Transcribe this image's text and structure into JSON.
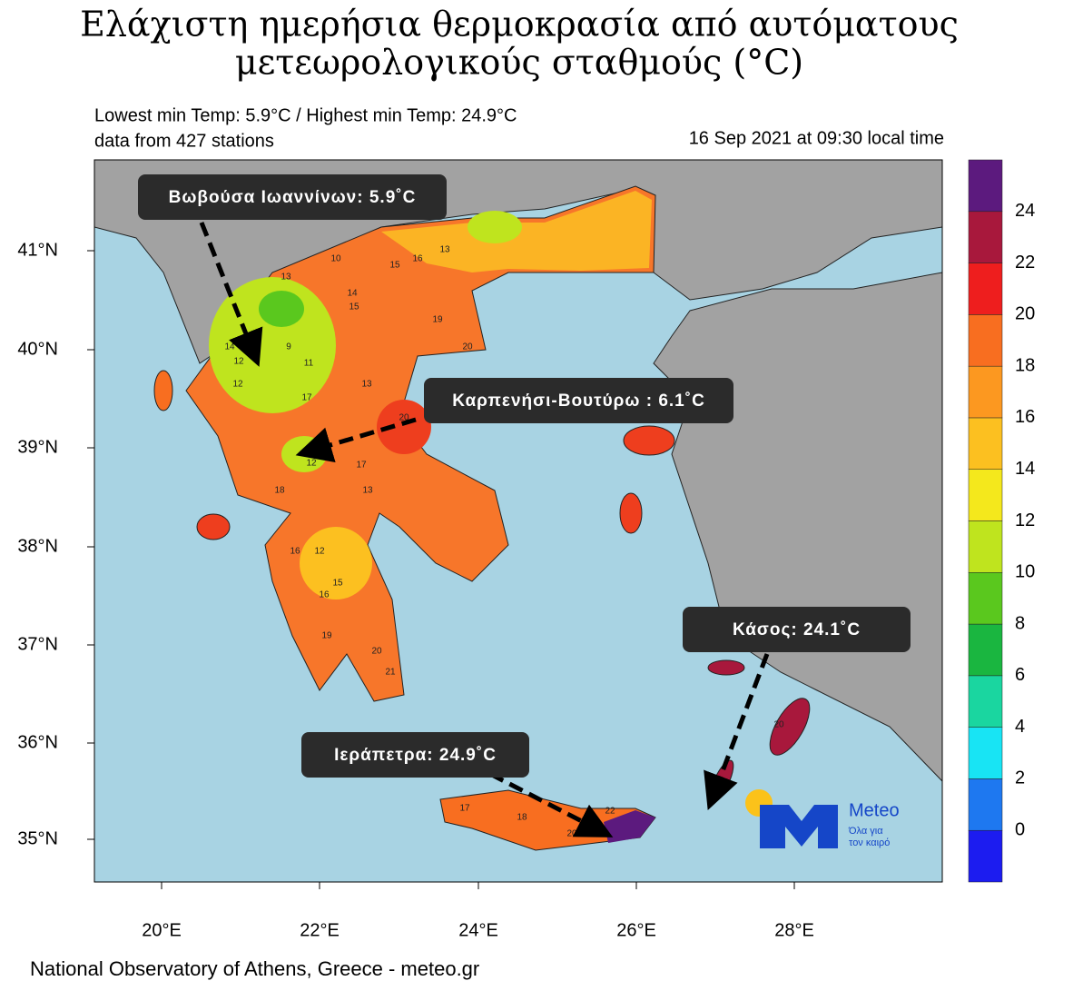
{
  "title": [
    "Ελάχιστη ημερήσια θερμοκρασία από αυτόματους",
    "μετεωρολογικούς σταθμούς (°C)"
  ],
  "subtitle": [
    "Lowest min Temp: 5.9°C / Highest min Temp: 24.9°C",
    "data from 427 stations"
  ],
  "date": "16 Sep 2021 at 09:30 local time",
  "lat_labels": [
    "41°N",
    "40°N",
    "39°N",
    "38°N",
    "37°N",
    "36°N",
    "35°N"
  ],
  "lon_labels": [
    "20°E",
    "22°E",
    "24°E",
    "26°E",
    "28°E"
  ],
  "colorbar": {
    "colors": [
      "#1c1cf0",
      "#1e78f0",
      "#18e4f4",
      "#1ad6a0",
      "#1ab640",
      "#5ac81e",
      "#bfe41e",
      "#f4e81c",
      "#fcc020",
      "#fc9820",
      "#f86e20",
      "#ee1e1e",
      "#a8183c",
      "#5c1a7e"
    ],
    "ticks": [
      0,
      2,
      4,
      6,
      8,
      10,
      12,
      14,
      16,
      18,
      20,
      22,
      24
    ]
  },
  "annotations": [
    "Βωβούσα Ιωαννίνων: 5.9˚C",
    "Καρπενήσι-Βουτύρω : 6.1˚C",
    "Κάσος: 24.1˚C",
    "Ιεράπετρα: 24.9˚C"
  ],
  "stations": [
    "13",
    "10",
    "15",
    "14",
    "13",
    "16",
    "15",
    "19",
    "20",
    "12",
    "9",
    "14",
    "11",
    "17",
    "13",
    "20",
    "12",
    "17",
    "13",
    "18",
    "16",
    "12",
    "15",
    "19",
    "20",
    "21",
    "17",
    "18",
    "20",
    "22",
    "20",
    "16",
    "12"
  ],
  "logo": {
    "name": "Meteo",
    "tagline": [
      "Όλα για",
      "τον καιρό"
    ]
  },
  "footer": "National Observatory of Athens, Greece - meteo.gr"
}
